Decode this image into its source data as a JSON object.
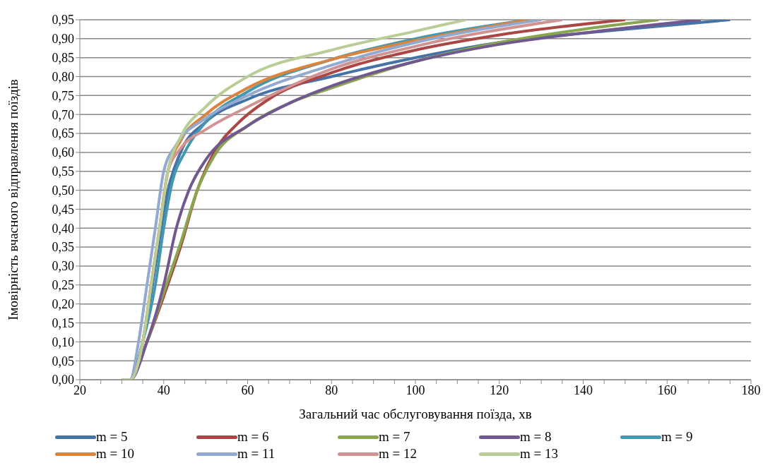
{
  "chart_data": {
    "type": "line",
    "xlabel": "Загальний час обслуговування поїзда, хв",
    "ylabel": "Імовірність вчасного відправлення поїздів",
    "xlim": [
      20,
      180
    ],
    "xticks": [
      20,
      {
        "value": 25,
        "label": null
      },
      {
        "value": 30,
        "label": null
      },
      {
        "value": 35,
        "label": null
      },
      40,
      {
        "value": 45,
        "label": null
      },
      {
        "value": 50,
        "label": null
      },
      {
        "value": 55,
        "label": null
      },
      60,
      {
        "value": 65,
        "label": null
      },
      {
        "value": 70,
        "label": null
      },
      {
        "value": 75,
        "label": null
      },
      80,
      {
        "value": 85,
        "label": null
      },
      {
        "value": 90,
        "label": null
      },
      {
        "value": 95,
        "label": null
      },
      100,
      {
        "value": 105,
        "label": null
      },
      {
        "value": 110,
        "label": null
      },
      {
        "value": 115,
        "label": null
      },
      120,
      {
        "value": 125,
        "label": null
      },
      {
        "value": 130,
        "label": null
      },
      {
        "value": 135,
        "label": null
      },
      140,
      {
        "value": 145,
        "label": null
      },
      {
        "value": 150,
        "label": null
      },
      {
        "value": 155,
        "label": null
      },
      160,
      {
        "value": 165,
        "label": null
      },
      {
        "value": 170,
        "label": null
      },
      {
        "value": 175,
        "label": null
      },
      180
    ],
    "ylim": [
      0,
      0.95
    ],
    "yticks": [
      {
        "value": 0,
        "label": "0,00"
      },
      {
        "value": 0.05,
        "label": "0,05"
      },
      {
        "value": 0.1,
        "label": "0,10"
      },
      {
        "value": 0.15,
        "label": "0,15"
      },
      {
        "value": 0.2,
        "label": "0,20"
      },
      {
        "value": 0.25,
        "label": "0,25"
      },
      {
        "value": 0.3,
        "label": "0,30"
      },
      {
        "value": 0.35,
        "label": "0,35"
      },
      {
        "value": 0.4,
        "label": "0,40"
      },
      {
        "value": 0.45,
        "label": "0,45"
      },
      {
        "value": 0.5,
        "label": "0,50"
      },
      {
        "value": 0.55,
        "label": "0,55"
      },
      {
        "value": 0.6,
        "label": "0,60"
      },
      {
        "value": 0.65,
        "label": "0,65"
      },
      {
        "value": 0.7,
        "label": "0,70"
      },
      {
        "value": 0.75,
        "label": "0,75"
      },
      {
        "value": 0.8,
        "label": "0,80"
      },
      {
        "value": 0.85,
        "label": "0,85"
      },
      {
        "value": 0.9,
        "label": "0,90"
      },
      {
        "value": 0.95,
        "label": "0,95"
      }
    ],
    "grid": "y",
    "legend": "bottom",
    "marker": "none",
    "line_style": "solid",
    "series": [
      {
        "name": "m = 5",
        "color": "#4572a7",
        "x": [
          30,
          32,
          35,
          38,
          41,
          44,
          50,
          60,
          80,
          100,
          120,
          150,
          175
        ],
        "values": [
          0,
          0,
          0.1,
          0.3,
          0.5,
          0.6,
          0.68,
          0.74,
          0.8,
          0.85,
          0.89,
          0.925,
          0.95
        ]
      },
      {
        "name": "m = 6",
        "color": "#aa4643",
        "x": [
          30,
          32,
          36,
          40,
          44,
          48,
          52,
          58,
          65,
          80,
          100,
          120,
          150
        ],
        "values": [
          0,
          0,
          0.1,
          0.22,
          0.35,
          0.5,
          0.6,
          0.68,
          0.74,
          0.81,
          0.87,
          0.91,
          0.95
        ]
      },
      {
        "name": "m = 7",
        "color": "#89a54e",
        "x": [
          30,
          32,
          36,
          40,
          44,
          48,
          52,
          60,
          70,
          80,
          100,
          120,
          140,
          158
        ],
        "values": [
          0,
          0,
          0.1,
          0.23,
          0.36,
          0.5,
          0.59,
          0.67,
          0.73,
          0.77,
          0.84,
          0.89,
          0.925,
          0.95
        ]
      },
      {
        "name": "m = 8",
        "color": "#71588f",
        "x": [
          30,
          32,
          36,
          40,
          43,
          46,
          50,
          60,
          70,
          80,
          100,
          120,
          140,
          168
        ],
        "values": [
          0,
          0,
          0.1,
          0.25,
          0.4,
          0.5,
          0.58,
          0.67,
          0.73,
          0.775,
          0.84,
          0.885,
          0.915,
          0.95
        ]
      },
      {
        "name": "m = 9",
        "color": "#4198af",
        "x": [
          30,
          32,
          35,
          38,
          40,
          42,
          45,
          50,
          60,
          80,
          100,
          127
        ],
        "values": [
          0,
          0,
          0.1,
          0.25,
          0.4,
          0.52,
          0.6,
          0.68,
          0.76,
          0.845,
          0.9,
          0.95
        ]
      },
      {
        "name": "m = 10",
        "color": "#db843d",
        "x": [
          30,
          32,
          35,
          37,
          39,
          41,
          44,
          50,
          60,
          80,
          100,
          127
        ],
        "values": [
          0,
          0,
          0.1,
          0.25,
          0.4,
          0.55,
          0.63,
          0.7,
          0.77,
          0.845,
          0.895,
          0.95
        ]
      },
      {
        "name": "m = 11",
        "color": "#93a9cf",
        "x": [
          30,
          32,
          34,
          36,
          38,
          40,
          43,
          50,
          60,
          80,
          100,
          130
        ],
        "values": [
          0,
          0,
          0.1,
          0.25,
          0.4,
          0.55,
          0.62,
          0.69,
          0.75,
          0.83,
          0.89,
          0.95
        ]
      },
      {
        "name": "m = 12",
        "color": "#d19392",
        "x": [
          30,
          32,
          35,
          37,
          39,
          41,
          44,
          50,
          60,
          80,
          100,
          135
        ],
        "values": [
          0,
          0,
          0.1,
          0.25,
          0.4,
          0.55,
          0.61,
          0.66,
          0.72,
          0.82,
          0.88,
          0.95
        ]
      },
      {
        "name": "m = 13",
        "color": "#b9cd96",
        "x": [
          30,
          32,
          35,
          37,
          39,
          41,
          44,
          50,
          60,
          80,
          100,
          112
        ],
        "values": [
          0,
          0,
          0.1,
          0.25,
          0.4,
          0.55,
          0.64,
          0.72,
          0.8,
          0.87,
          0.92,
          0.95
        ]
      }
    ]
  }
}
